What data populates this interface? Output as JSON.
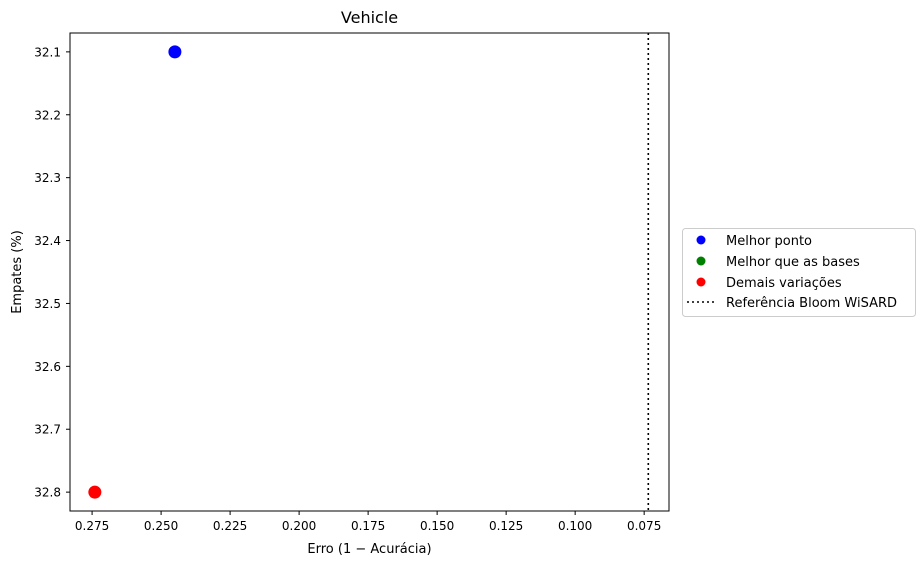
{
  "chart_data": {
    "type": "scatter",
    "title": "Vehicle",
    "xlabel": "Erro (1 − Acurácia)",
    "ylabel": "Empates (%)",
    "xlim": [
      0.283,
      0.066
    ],
    "ylim": [
      32.83,
      32.07
    ],
    "x_inverted": true,
    "y_inverted": true,
    "grid": false,
    "legend_position": "outside-right",
    "x_ticks": [
      0.275,
      0.25,
      0.225,
      0.2,
      0.175,
      0.15,
      0.125,
      0.1,
      0.075
    ],
    "x_tick_labels": [
      "0.275",
      "0.250",
      "0.225",
      "0.200",
      "0.175",
      "0.150",
      "0.125",
      "0.100",
      "0.075"
    ],
    "y_ticks": [
      32.1,
      32.2,
      32.3,
      32.4,
      32.5,
      32.6,
      32.7,
      32.8
    ],
    "y_tick_labels": [
      "32.1",
      "32.2",
      "32.3",
      "32.4",
      "32.5",
      "32.6",
      "32.7",
      "32.8"
    ],
    "series": [
      {
        "name": "Melhor ponto",
        "color": "#0000ff",
        "marker": "circle",
        "points": [
          {
            "x": 0.245,
            "y": 32.1
          }
        ]
      },
      {
        "name": "Melhor que as bases",
        "color": "#008000",
        "marker": "circle",
        "points": []
      },
      {
        "name": "Demais variações",
        "color": "#ff0000",
        "marker": "circle",
        "points": [
          {
            "x": 0.274,
            "y": 32.8
          }
        ]
      }
    ],
    "reference_lines": [
      {
        "name": "Referência Bloom WiSARD",
        "orientation": "vertical",
        "x": 0.0735,
        "style": "dotted",
        "color": "#000000"
      }
    ]
  }
}
